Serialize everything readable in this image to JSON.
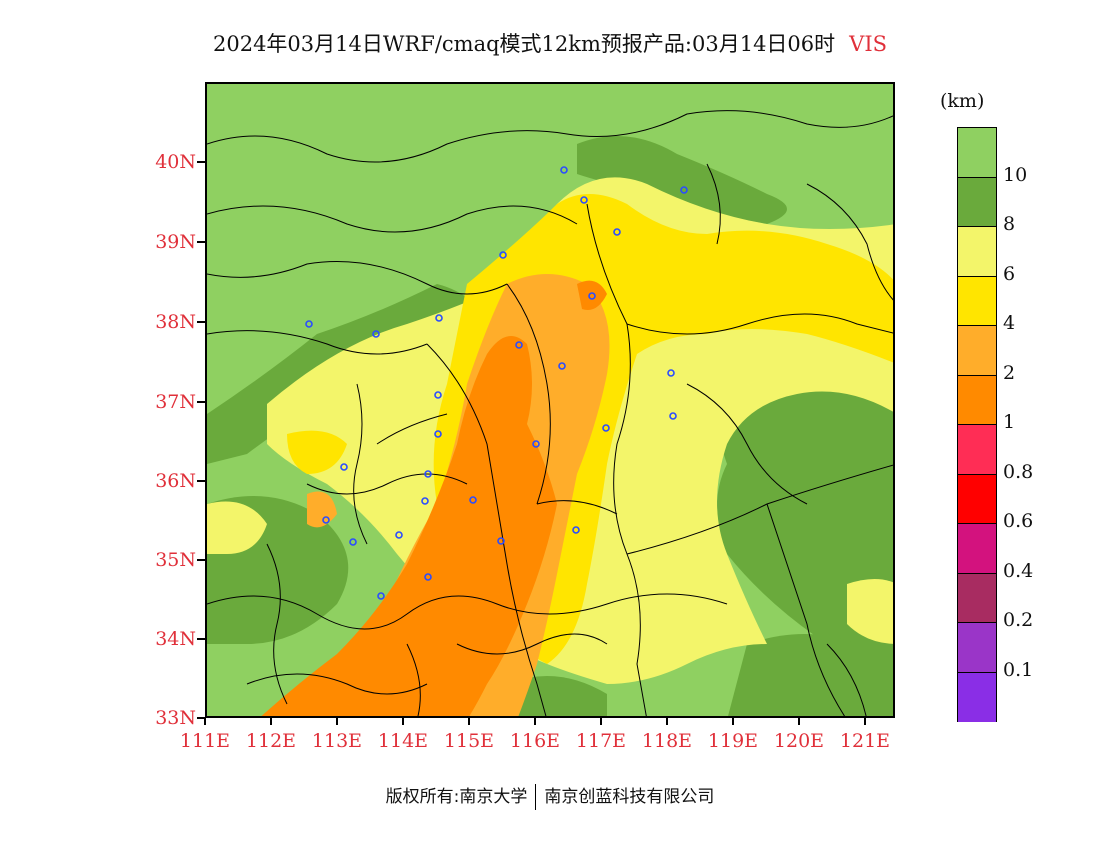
{
  "title": {
    "text": "2024年03月14日WRF/cmaq模式12km预报产品:03月14日06时",
    "variable": "VIS"
  },
  "legend": {
    "unit": "(km)",
    "levels": [
      {
        "label": "10",
        "color": "#8fd061"
      },
      {
        "label": "8",
        "color": "#6aaa3c"
      },
      {
        "label": "6",
        "color": "#f3f56a"
      },
      {
        "label": "4",
        "color": "#ffe500"
      },
      {
        "label": "2",
        "color": "#ffad2a"
      },
      {
        "label": "1",
        "color": "#ff8a00"
      },
      {
        "label": "0.8",
        "color": "#ff2d55"
      },
      {
        "label": "0.6",
        "color": "#ff0000"
      },
      {
        "label": "0.4",
        "color": "#d3127e"
      },
      {
        "label": "0.2",
        "color": "#a82c61"
      },
      {
        "label": "0.1",
        "color": "#9a35c8"
      },
      {
        "label": "",
        "color": "#8a2ee6"
      }
    ]
  },
  "axes": {
    "lat_labels": [
      "40N",
      "39N",
      "38N",
      "37N",
      "36N",
      "35N",
      "34N",
      "33N"
    ],
    "lon_labels": [
      "111E",
      "112E",
      "113E",
      "114E",
      "115E",
      "116E",
      "117E",
      "118E",
      "119E",
      "120E",
      "121E"
    ]
  },
  "footer": {
    "left": "版权所有:南京大学",
    "right": "南京创蓝科技有限公司"
  }
}
